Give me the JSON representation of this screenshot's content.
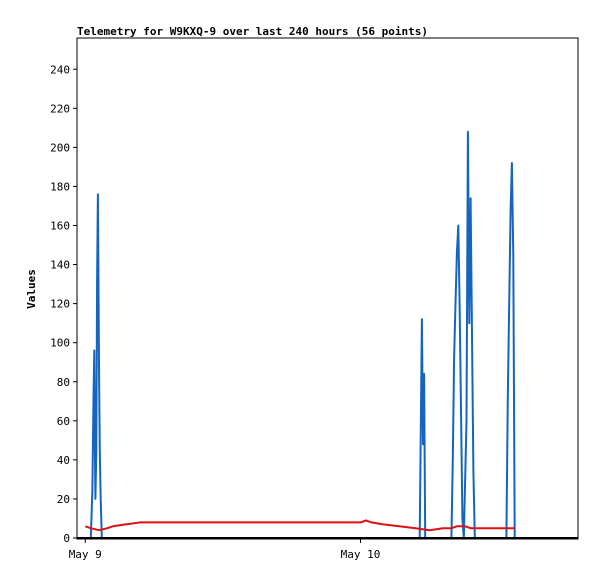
{
  "chart_data": {
    "type": "line",
    "title": "Telemetry for W9KXQ-9 over last 240 hours (56 points)",
    "xlabel": "",
    "ylabel": "Values",
    "ylim": [
      0,
      256
    ],
    "yticks": [
      0,
      20,
      40,
      60,
      80,
      100,
      120,
      140,
      160,
      180,
      200,
      220,
      240
    ],
    "xlim": [
      -0.03,
      1.79
    ],
    "xticks": [
      {
        "label": "May 9",
        "value": 0
      },
      {
        "label": "May 10",
        "value": 1
      }
    ],
    "grid": false,
    "legend": "none",
    "series": [
      {
        "color": "#1565c0",
        "x": [
          0.02,
          0.026,
          0.03,
          0.033,
          0.035,
          0.037,
          0.04,
          0.043,
          0.046,
          0.05,
          0.053,
          0.056,
          0.06,
          1.215,
          1.219,
          1.223,
          1.227,
          1.231,
          1.235,
          1.33,
          1.335,
          1.34,
          1.345,
          1.35,
          1.355,
          1.36,
          1.365,
          1.37,
          1.375,
          1.385,
          1.39,
          1.395,
          1.4,
          1.405,
          1.41,
          1.415,
          1.53,
          1.535,
          1.54,
          1.545,
          1.55,
          1.555,
          1.56
        ],
        "values": [
          0,
          25,
          72,
          96,
          48,
          20,
          44,
          132,
          176,
          88,
          44,
          20,
          0,
          0,
          56,
          112,
          48,
          84,
          0,
          0,
          40,
          92,
          120,
          146,
          160,
          120,
          66,
          10,
          0,
          60,
          208,
          110,
          174,
          104,
          34,
          0,
          0,
          72,
          120,
          168,
          192,
          144,
          0
        ]
      },
      {
        "color": "#e01010",
        "x": [
          0.0,
          0.02,
          0.05,
          0.08,
          0.1,
          0.15,
          0.2,
          1.0,
          1.02,
          1.04,
          1.08,
          1.2,
          1.25,
          1.3,
          1.33,
          1.35,
          1.38,
          1.4,
          1.45,
          1.56
        ],
        "values": [
          6,
          5,
          4,
          5,
          6,
          7,
          8,
          8,
          9,
          8,
          7,
          5,
          4,
          5,
          5,
          6,
          6,
          5,
          5,
          5
        ]
      }
    ]
  }
}
